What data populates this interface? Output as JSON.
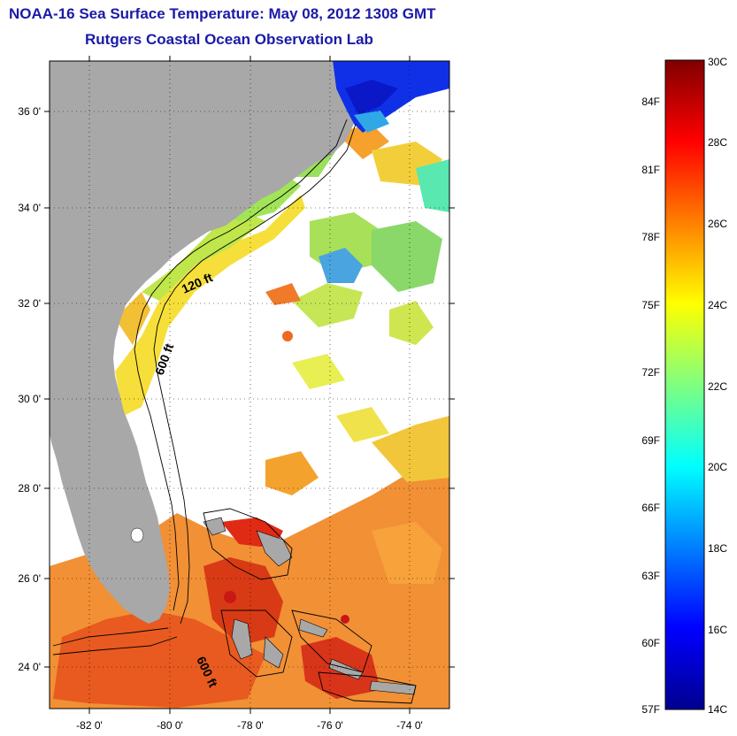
{
  "title": "NOAA-16 Sea Surface Temperature:  May 08, 2012 1308 GMT",
  "subtitle": "Rutgers Coastal Ocean Observation Lab",
  "map": {
    "lat_labels": [
      "36 0'",
      "34 0'",
      "32 0'",
      "30 0'",
      "28 0'",
      "26 0'",
      "24 0'"
    ],
    "lon_labels": [
      "-82 0'",
      "-80 0'",
      "-78 0'",
      "-76 0'",
      "-74 0'"
    ],
    "contour_labels": [
      "120 ft",
      "600 ft",
      "600 ft"
    ],
    "land_color": "#a8a8a8"
  },
  "colorbar": {
    "celsius_labels": [
      "30C",
      "28C",
      "26C",
      "24C",
      "22C",
      "20C",
      "18C",
      "16C",
      "14C"
    ],
    "fahrenheit_labels": [
      "84F",
      "81F",
      "78F",
      "75F",
      "72F",
      "69F",
      "66F",
      "63F",
      "60F",
      "57F"
    ],
    "range_c": [
      14,
      30
    ]
  }
}
